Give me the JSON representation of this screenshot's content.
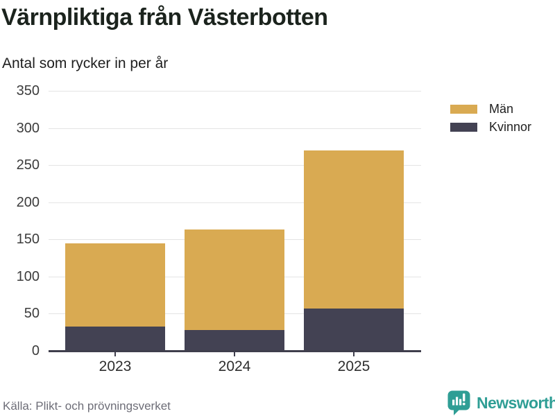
{
  "header": {
    "title": "Värnpliktiga från Västerbotten",
    "subtitle": "Antal som rycker in per år"
  },
  "chart_data": {
    "type": "bar",
    "stacked": true,
    "categories": [
      "2023",
      "2024",
      "2025"
    ],
    "series": [
      {
        "name": "Män",
        "color": "#d9aa52",
        "values": [
          112,
          135,
          213
        ]
      },
      {
        "name": "Kvinnor",
        "color": "#434253",
        "values": [
          33,
          28,
          57
        ]
      }
    ],
    "totals": [
      145,
      163,
      270
    ],
    "title": "Värnpliktiga från Västerbotten",
    "subtitle": "Antal som rycker in per år",
    "xlabel": "",
    "ylabel": "",
    "ylim": [
      0,
      350
    ],
    "yticks": [
      0,
      50,
      100,
      150,
      200,
      250,
      300,
      350
    ],
    "grid": true,
    "legend_position": "right"
  },
  "legend": {
    "items": [
      {
        "label": "Män",
        "color": "#d9aa52"
      },
      {
        "label": "Kvinnor",
        "color": "#434253"
      }
    ]
  },
  "footer": {
    "source": "Källa: Plikt- och prövningsverket",
    "brand": "Newsworthy"
  },
  "colors": {
    "men": "#d9aa52",
    "women": "#434253",
    "axis": "#3f3e4c",
    "gridline": "#e4e4e4",
    "brand_teal": "#2f9e95",
    "title_text": "#1b231d",
    "source_text": "#6d6d77"
  }
}
